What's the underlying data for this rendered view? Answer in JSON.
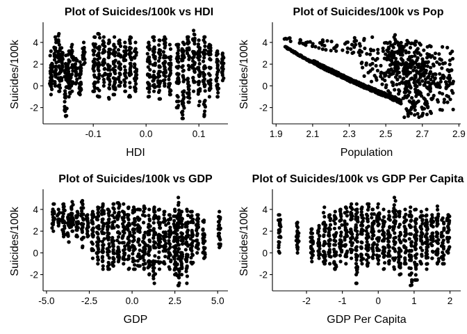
{
  "chart_data": [
    {
      "type": "scatter",
      "title": "Plot of Suicides/100k vs HDI",
      "xlabel": "HDI",
      "ylabel": "Suicides/100k",
      "xlim": [
        -0.195,
        0.155
      ],
      "ylim": [
        -3.5,
        5.6
      ],
      "xticks": [
        -0.1,
        0.0,
        0.1
      ],
      "xtick_labels": [
        "-0.1",
        "0.0",
        "0.1"
      ],
      "yticks": [
        -2,
        0,
        2,
        4
      ],
      "ytick_labels": [
        "-2",
        "0",
        "2",
        "4"
      ],
      "grid": false,
      "columns": [
        {
          "x": -0.18,
          "ymin": -0.8,
          "ymax": 3.2
        },
        {
          "x": -0.172,
          "ymin": 0.0,
          "ymax": 4.5
        },
        {
          "x": -0.165,
          "ymin": -0.5,
          "ymax": 4.8
        },
        {
          "x": -0.16,
          "ymin": 0.5,
          "ymax": 3.5
        },
        {
          "x": -0.152,
          "ymin": -2.8,
          "ymax": 2.8
        },
        {
          "x": -0.146,
          "ymin": -1.0,
          "ymax": 3.2
        },
        {
          "x": -0.14,
          "ymin": -0.5,
          "ymax": 3.8
        },
        {
          "x": -0.133,
          "ymin": 0.2,
          "ymax": 2.5
        },
        {
          "x": -0.125,
          "ymin": -0.8,
          "ymax": 2.2
        },
        {
          "x": -0.118,
          "ymin": 2.0,
          "ymax": 4.0
        },
        {
          "x": -0.098,
          "ymin": -0.5,
          "ymax": 4.5
        },
        {
          "x": -0.09,
          "ymin": -1.0,
          "ymax": 4.8
        },
        {
          "x": -0.08,
          "ymin": 0.0,
          "ymax": 4.5
        },
        {
          "x": -0.07,
          "ymin": -1.2,
          "ymax": 4.2
        },
        {
          "x": -0.06,
          "ymin": -0.8,
          "ymax": 4.5
        },
        {
          "x": -0.05,
          "ymin": 0.0,
          "ymax": 4.2
        },
        {
          "x": -0.04,
          "ymin": -0.5,
          "ymax": 4.0
        },
        {
          "x": -0.03,
          "ymin": -1.0,
          "ymax": 4.5
        },
        {
          "x": -0.02,
          "ymin": -0.5,
          "ymax": 4.0
        },
        {
          "x": 0.005,
          "ymin": -1.0,
          "ymax": 4.0
        },
        {
          "x": 0.015,
          "ymin": -0.5,
          "ymax": 4.5
        },
        {
          "x": 0.025,
          "ymin": -1.2,
          "ymax": 4.2
        },
        {
          "x": 0.035,
          "ymin": 0.0,
          "ymax": 4.5
        },
        {
          "x": 0.045,
          "ymin": -0.8,
          "ymax": 3.8
        },
        {
          "x": 0.06,
          "ymin": -2.0,
          "ymax": 3.8
        },
        {
          "x": 0.07,
          "ymin": -3.0,
          "ymax": 4.0
        },
        {
          "x": 0.08,
          "ymin": -1.5,
          "ymax": 4.5
        },
        {
          "x": 0.09,
          "ymin": -0.5,
          "ymax": 5.1
        },
        {
          "x": 0.1,
          "ymin": -1.8,
          "ymax": 4.2
        },
        {
          "x": 0.11,
          "ymin": -2.8,
          "ymax": 4.5
        },
        {
          "x": 0.12,
          "ymin": -1.0,
          "ymax": 3.8
        },
        {
          "x": 0.135,
          "ymin": -1.0,
          "ymax": 3.2
        },
        {
          "x": 0.145,
          "ymin": 0.5,
          "ymax": 3.0
        }
      ]
    },
    {
      "type": "scatter",
      "title": "Plot of Suicides/100k vs Pop",
      "xlabel": "Population",
      "ylabel": "Suicides/100k",
      "xlim": [
        1.88,
        2.91
      ],
      "ylim": [
        -3.5,
        5.6
      ],
      "xticks": [
        1.9,
        2.1,
        2.3,
        2.5,
        2.7,
        2.9
      ],
      "xtick_labels": [
        "1.9",
        "2.1",
        "2.3",
        "2.5",
        "2.7",
        "2.9"
      ],
      "yticks": [
        -2,
        0,
        2,
        4
      ],
      "ytick_labels": [
        "-2",
        "0",
        "2",
        "4"
      ],
      "grid": false,
      "curve": [
        {
          "x": 1.95,
          "y": 3.6
        },
        {
          "x": 2.0,
          "y": 3.1
        },
        {
          "x": 2.05,
          "y": 2.6
        },
        {
          "x": 2.1,
          "y": 2.15
        },
        {
          "x": 2.15,
          "y": 1.7
        },
        {
          "x": 2.2,
          "y": 1.3
        },
        {
          "x": 2.25,
          "y": 0.9
        },
        {
          "x": 2.3,
          "y": 0.5
        },
        {
          "x": 2.35,
          "y": 0.1
        },
        {
          "x": 2.4,
          "y": -0.25
        },
        {
          "x": 2.45,
          "y": -0.6
        },
        {
          "x": 2.5,
          "y": -0.95
        },
        {
          "x": 2.55,
          "y": -1.3
        },
        {
          "x": 2.585,
          "y": -1.6
        }
      ],
      "upper_bound": [
        {
          "x": 1.92,
          "y": 4.7
        },
        {
          "x": 2.0,
          "y": 4.3
        },
        {
          "x": 2.1,
          "y": 4.2
        },
        {
          "x": 2.2,
          "y": 4.3
        },
        {
          "x": 2.3,
          "y": 4.4
        },
        {
          "x": 2.4,
          "y": 4.5
        },
        {
          "x": 2.5,
          "y": 4.6
        },
        {
          "x": 2.6,
          "y": 4.8
        },
        {
          "x": 2.7,
          "y": 4.5
        },
        {
          "x": 2.8,
          "y": 4.0
        },
        {
          "x": 2.88,
          "y": 3.5
        }
      ],
      "cloud_region": {
        "xmin": 2.35,
        "xmax": 2.87,
        "ymin": -3.0,
        "ymax": 4.6
      }
    },
    {
      "type": "scatter",
      "title": "Plot of Suicides/100k vs GDP",
      "xlabel": "GDP",
      "ylabel": "Suicides/100k",
      "xlim": [
        -5.2,
        5.6
      ],
      "ylim": [
        -3.5,
        5.6
      ],
      "xticks": [
        -5.0,
        -2.5,
        0.0,
        2.5,
        5.0
      ],
      "xtick_labels": [
        "-5.0",
        "-2.5",
        "0.0",
        "2.5",
        "5.0"
      ],
      "yticks": [
        -2,
        0,
        2,
        4
      ],
      "ytick_labels": [
        "-2",
        "0",
        "2",
        "4"
      ],
      "grid": false,
      "columns": [
        {
          "x": -4.6,
          "ymin": 2.0,
          "ymax": 4.5
        },
        {
          "x": -4.3,
          "ymin": 2.5,
          "ymax": 4.0
        },
        {
          "x": -4.0,
          "ymin": 1.5,
          "ymax": 4.5
        },
        {
          "x": -3.7,
          "ymin": 1.0,
          "ymax": 3.5
        },
        {
          "x": -3.5,
          "ymin": 2.0,
          "ymax": 4.7
        },
        {
          "x": -3.2,
          "ymin": 1.5,
          "ymax": 3.8
        },
        {
          "x": -2.9,
          "ymin": 0.5,
          "ymax": 4.8
        },
        {
          "x": -2.6,
          "ymin": 1.5,
          "ymax": 3.5
        },
        {
          "x": -2.3,
          "ymin": -0.5,
          "ymax": 3.8
        },
        {
          "x": -2.0,
          "ymin": -1.0,
          "ymax": 4.2
        },
        {
          "x": -1.7,
          "ymin": -1.5,
          "ymax": 4.5
        },
        {
          "x": -1.4,
          "ymin": -1.5,
          "ymax": 4.0
        },
        {
          "x": -1.1,
          "ymin": -1.2,
          "ymax": 4.5
        },
        {
          "x": -0.8,
          "ymin": -0.8,
          "ymax": 4.6
        },
        {
          "x": -0.5,
          "ymin": -1.0,
          "ymax": 4.5
        },
        {
          "x": -0.2,
          "ymin": -1.5,
          "ymax": 4.2
        },
        {
          "x": 0.1,
          "ymin": -1.5,
          "ymax": 4.2
        },
        {
          "x": 0.4,
          "ymin": -1.2,
          "ymax": 4.0
        },
        {
          "x": 0.7,
          "ymin": -1.5,
          "ymax": 4.3
        },
        {
          "x": 1.0,
          "ymin": -2.0,
          "ymax": 4.0
        },
        {
          "x": 1.3,
          "ymin": -2.8,
          "ymax": 4.2
        },
        {
          "x": 1.6,
          "ymin": -1.5,
          "ymax": 4.0
        },
        {
          "x": 1.9,
          "ymin": -1.0,
          "ymax": 3.8
        },
        {
          "x": 2.2,
          "ymin": -1.5,
          "ymax": 3.5
        },
        {
          "x": 2.5,
          "ymin": -2.0,
          "ymax": 4.0
        },
        {
          "x": 2.7,
          "ymin": -3.0,
          "ymax": 5.1
        },
        {
          "x": 2.9,
          "ymin": -2.0,
          "ymax": 3.8
        },
        {
          "x": 3.2,
          "ymin": -2.8,
          "ymax": 4.0
        },
        {
          "x": 3.5,
          "ymin": -1.0,
          "ymax": 3.8
        },
        {
          "x": 3.8,
          "ymin": 0.0,
          "ymax": 3.5
        },
        {
          "x": 4.2,
          "ymin": -0.5,
          "ymax": 3.0
        },
        {
          "x": 5.1,
          "ymin": 0.5,
          "ymax": 3.8
        }
      ]
    },
    {
      "type": "scatter",
      "title": "Plot of Suicides/100k vs GDP Per Capita",
      "xlabel": "GDP Per Capita",
      "ylabel": "Suicides/100k",
      "xlim": [
        -2.95,
        2.3
      ],
      "ylim": [
        -3.5,
        5.6
      ],
      "xticks": [
        -2,
        -1,
        0,
        1,
        2
      ],
      "xtick_labels": [
        "-2",
        "-1",
        "0",
        "1",
        "2"
      ],
      "yticks": [
        -2,
        0,
        2,
        4
      ],
      "ytick_labels": [
        "-2",
        "0",
        "2",
        "4"
      ],
      "grid": false,
      "columns": [
        {
          "x": -2.75,
          "ymin": 0.0,
          "ymax": 3.5
        },
        {
          "x": -2.25,
          "ymin": 0.0,
          "ymax": 2.8
        },
        {
          "x": -1.85,
          "ymin": -0.8,
          "ymax": 2.2
        },
        {
          "x": -1.65,
          "ymin": -0.5,
          "ymax": 2.5
        },
        {
          "x": -1.5,
          "ymin": -1.0,
          "ymax": 4.2
        },
        {
          "x": -1.35,
          "ymin": -1.0,
          "ymax": 3.5
        },
        {
          "x": -1.2,
          "ymin": -1.5,
          "ymax": 3.8
        },
        {
          "x": -1.05,
          "ymin": -0.8,
          "ymax": 4.0
        },
        {
          "x": -0.9,
          "ymin": -1.0,
          "ymax": 4.2
        },
        {
          "x": -0.75,
          "ymin": -0.5,
          "ymax": 4.5
        },
        {
          "x": -0.6,
          "ymin": -2.8,
          "ymax": 4.5
        },
        {
          "x": -0.45,
          "ymin": -1.0,
          "ymax": 4.2
        },
        {
          "x": -0.3,
          "ymin": -1.2,
          "ymax": 4.5
        },
        {
          "x": -0.15,
          "ymin": -0.5,
          "ymax": 4.0
        },
        {
          "x": 0.0,
          "ymin": -1.0,
          "ymax": 4.5
        },
        {
          "x": 0.15,
          "ymin": -1.5,
          "ymax": 4.0
        },
        {
          "x": 0.3,
          "ymin": -1.0,
          "ymax": 3.8
        },
        {
          "x": 0.45,
          "ymin": -1.5,
          "ymax": 5.1
        },
        {
          "x": 0.6,
          "ymin": -2.0,
          "ymax": 3.8
        },
        {
          "x": 0.75,
          "ymin": -1.0,
          "ymax": 4.0
        },
        {
          "x": 0.9,
          "ymin": -3.0,
          "ymax": 4.2
        },
        {
          "x": 1.05,
          "ymin": -2.5,
          "ymax": 4.0
        },
        {
          "x": 1.2,
          "ymin": -1.0,
          "ymax": 3.8
        },
        {
          "x": 1.35,
          "ymin": -1.5,
          "ymax": 4.0
        },
        {
          "x": 1.5,
          "ymin": -0.5,
          "ymax": 3.5
        },
        {
          "x": 1.65,
          "ymin": -1.0,
          "ymax": 4.3
        },
        {
          "x": 1.8,
          "ymin": -1.0,
          "ymax": 3.2
        },
        {
          "x": 1.95,
          "ymin": 0.0,
          "ymax": 3.5
        }
      ]
    }
  ]
}
